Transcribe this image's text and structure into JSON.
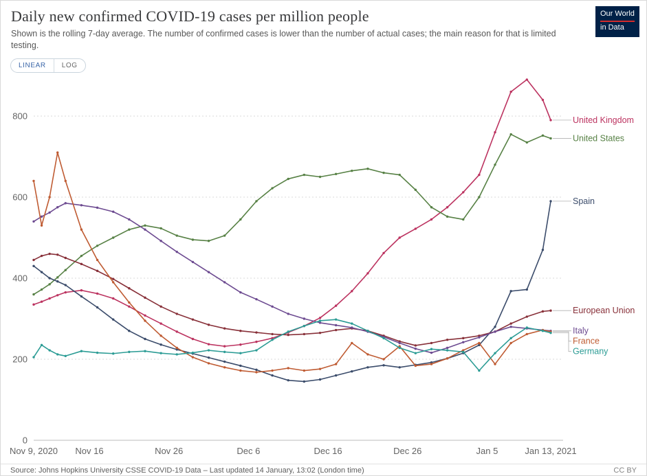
{
  "header": {
    "title": "Daily new confirmed COVID-19 cases per million people",
    "subtitle": "Shown is the rolling 7-day average. The number of confirmed cases is lower than the number of actual cases; the main reason for that is limited testing.",
    "logo": {
      "line1": "Our World",
      "line2": "in Data",
      "bg_color": "#002147",
      "accent_color": "#d42b2b"
    }
  },
  "controls": {
    "linear_label": "LINEAR",
    "log_label": "LOG",
    "active": "LINEAR",
    "active_color": "#3a66a8"
  },
  "chart_data": {
    "type": "line",
    "title": "Daily new confirmed COVID-19 cases per million people",
    "xlabel": "",
    "ylabel": "",
    "x_unit": "days since Nov 9, 2020",
    "ylim": [
      0,
      920
    ],
    "grid": "dashed-horizontal",
    "legend_position": "right-end-labels",
    "y_ticks": [
      0,
      200,
      400,
      600,
      800
    ],
    "x_ticks": [
      {
        "label": "Nov 9, 2020",
        "day": 0
      },
      {
        "label": "Nov 16",
        "day": 7
      },
      {
        "label": "Nov 26",
        "day": 17
      },
      {
        "label": "Dec 6",
        "day": 27
      },
      {
        "label": "Dec 16",
        "day": 37
      },
      {
        "label": "Dec 26",
        "day": 47
      },
      {
        "label": "Jan 5",
        "day": 57
      },
      {
        "label": "Jan 13, 2021",
        "day": 65
      }
    ],
    "x": [
      0,
      1,
      2,
      3,
      4,
      6,
      8,
      10,
      12,
      14,
      16,
      18,
      20,
      22,
      24,
      26,
      28,
      30,
      32,
      34,
      36,
      38,
      40,
      42,
      44,
      46,
      48,
      50,
      52,
      54,
      56,
      58,
      60,
      62,
      64,
      65
    ],
    "series": [
      {
        "name": "United Kingdom",
        "color": "#bc3360",
        "values": [
          335,
          342,
          350,
          358,
          365,
          370,
          362,
          350,
          330,
          308,
          288,
          268,
          250,
          237,
          232,
          236,
          243,
          252,
          266,
          282,
          302,
          332,
          368,
          412,
          462,
          500,
          522,
          545,
          575,
          612,
          655,
          760,
          860,
          890,
          840,
          790
        ]
      },
      {
        "name": "United States",
        "color": "#578145",
        "values": [
          360,
          372,
          385,
          402,
          420,
          455,
          480,
          500,
          520,
          530,
          523,
          505,
          495,
          492,
          505,
          545,
          590,
          622,
          645,
          655,
          650,
          657,
          665,
          670,
          660,
          655,
          618,
          575,
          552,
          545,
          600,
          680,
          755,
          735,
          752,
          745
        ]
      },
      {
        "name": "Spain",
        "color": "#3b4c6b",
        "values": [
          430,
          415,
          400,
          392,
          383,
          355,
          328,
          298,
          270,
          250,
          236,
          224,
          214,
          204,
          194,
          184,
          174,
          160,
          148,
          145,
          150,
          160,
          170,
          180,
          185,
          180,
          186,
          192,
          202,
          215,
          235,
          280,
          368,
          372,
          470,
          590
        ]
      },
      {
        "name": "European Union",
        "color": "#883039",
        "values": [
          445,
          455,
          460,
          458,
          450,
          435,
          418,
          398,
          375,
          352,
          330,
          312,
          298,
          285,
          276,
          270,
          266,
          262,
          260,
          262,
          265,
          272,
          276,
          270,
          258,
          244,
          234,
          240,
          248,
          252,
          258,
          268,
          288,
          305,
          318,
          320
        ]
      },
      {
        "name": "Italy",
        "color": "#6d4b91",
        "values": [
          540,
          552,
          562,
          575,
          585,
          580,
          574,
          564,
          545,
          520,
          492,
          465,
          440,
          415,
          390,
          365,
          348,
          330,
          312,
          300,
          290,
          284,
          278,
          268,
          255,
          240,
          226,
          216,
          228,
          242,
          254,
          268,
          280,
          276,
          272,
          270
        ]
      },
      {
        "name": "France",
        "color": "#bf5b32",
        "values": [
          640,
          530,
          600,
          710,
          640,
          520,
          445,
          390,
          340,
          295,
          258,
          228,
          205,
          190,
          180,
          172,
          168,
          172,
          178,
          172,
          176,
          188,
          240,
          212,
          200,
          232,
          184,
          188,
          202,
          222,
          240,
          188,
          240,
          262,
          272,
          268
        ]
      },
      {
        "name": "Germany",
        "color": "#2c9c95",
        "values": [
          205,
          235,
          222,
          212,
          208,
          220,
          216,
          214,
          218,
          220,
          215,
          212,
          216,
          222,
          218,
          215,
          222,
          248,
          268,
          282,
          295,
          298,
          288,
          270,
          252,
          228,
          215,
          225,
          222,
          218,
          172,
          215,
          252,
          278,
          270,
          265
        ]
      }
    ]
  },
  "footer": {
    "source": "Source: Johns Hopkins University CSSE COVID-19 Data – Last updated 14 January, 13:02 (London time)",
    "license": "CC BY"
  }
}
